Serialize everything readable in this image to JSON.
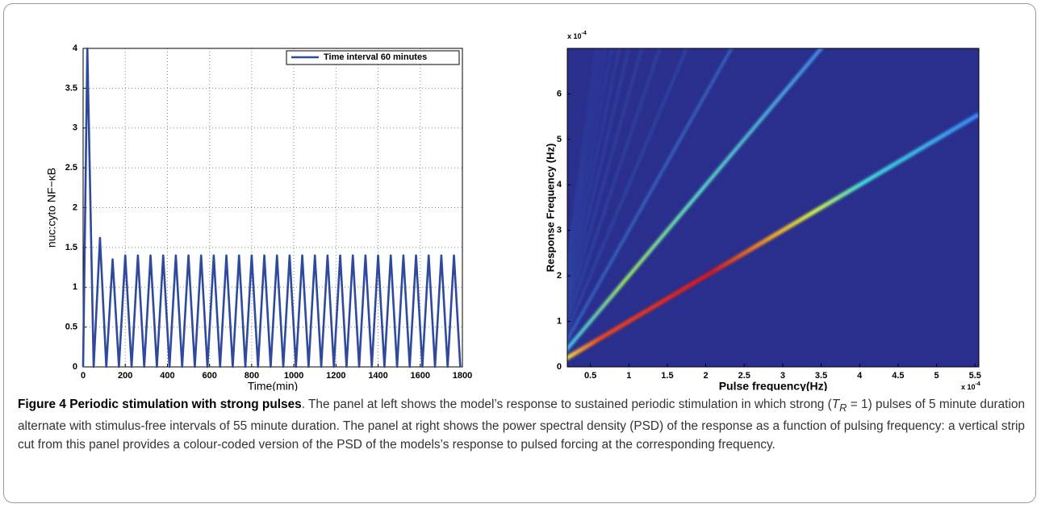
{
  "chart_data": [
    {
      "type": "line",
      "x": [
        0,
        20,
        50,
        80,
        110,
        140,
        170,
        200,
        230,
        260,
        290,
        320,
        350,
        380,
        410,
        440,
        470,
        500,
        530,
        560,
        590,
        620,
        650,
        680,
        710,
        740,
        770,
        800,
        830,
        860,
        890,
        920,
        950,
        980,
        1010,
        1040,
        1070,
        1100,
        1130,
        1160,
        1190,
        1220,
        1250,
        1280,
        1310,
        1340,
        1370,
        1400,
        1430,
        1460,
        1490,
        1520,
        1550,
        1580,
        1610,
        1640,
        1670,
        1700,
        1730,
        1760,
        1790
      ],
      "series": [
        {
          "name": "Time interval 60 minutes",
          "color": "#2f4a9c",
          "values": [
            0,
            4,
            0,
            1.62,
            0,
            1.35,
            0,
            1.4,
            0,
            1.4,
            0,
            1.4,
            0,
            1.4,
            0,
            1.4,
            0,
            1.4,
            0,
            1.4,
            0,
            1.4,
            0,
            1.4,
            0,
            1.4,
            0,
            1.4,
            0,
            1.4,
            0,
            1.4,
            0,
            1.4,
            0,
            1.4,
            0,
            1.4,
            0,
            1.4,
            0,
            1.4,
            0,
            1.4,
            0,
            1.4,
            0,
            1.4,
            0,
            1.4,
            0,
            1.4,
            0,
            1.4,
            0,
            1.4,
            0,
            1.4,
            0,
            1.4,
            0
          ]
        }
      ],
      "xlabel": "Time(min)",
      "ylabel": "nuc:cyto NF−κB",
      "xlim": [
        0,
        1800
      ],
      "ylim": [
        0,
        4
      ],
      "xticks": [
        0,
        200,
        400,
        600,
        800,
        1000,
        1200,
        1400,
        1600,
        1800
      ],
      "yticks": [
        0,
        0.5,
        1,
        1.5,
        2,
        2.5,
        3,
        3.5,
        4
      ],
      "grid": true,
      "legend": "upper right"
    },
    {
      "type": "heatmap",
      "xlabel": "Pulse frequency(Hz)",
      "ylabel": "Response Frequency (Hz)",
      "xlim": [
        0.2,
        5.55
      ],
      "ylim": [
        0,
        7
      ],
      "xticks": [
        0.5,
        1,
        1.5,
        2,
        2.5,
        3,
        3.5,
        4,
        4.5,
        5,
        5.5
      ],
      "yticks": [
        0,
        1,
        2,
        3,
        4,
        5,
        6
      ],
      "x_multiplier": "x 10",
      "x_multiplier_exp": "-4",
      "y_multiplier": "x 10",
      "y_multiplier_exp": "-4",
      "background": "#2a2e8c"
    }
  ],
  "caption": {
    "title": "Figure 4 Periodic stimulation with strong pulses",
    "text_1": ". The panel at left shows the model’s response to sustained periodic stimulation in which strong (",
    "symbol": "T",
    "symbol_subscript": "R",
    "text_2": " = 1) pulses of 5 minute duration alternate with stimulus-free intervals of 55 minute duration. The panel at right shows the power spectral density (PSD) of the response as a function of pulsing frequency: a vertical strip cut from this panel provides a colour-coded version of the PSD of the models’s response to pulsed forcing at the corresponding frequency."
  }
}
